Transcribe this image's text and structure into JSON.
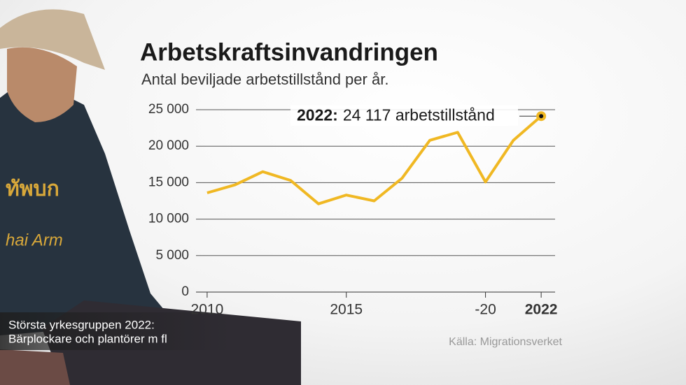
{
  "chart_data": {
    "type": "line",
    "title": "Arbetskraftsinvandringen",
    "subtitle": "Antal beviljade arbetstillstånd per år.",
    "x": [
      2010,
      2011,
      2012,
      2013,
      2014,
      2015,
      2016,
      2017,
      2018,
      2019,
      2020,
      2021,
      2022
    ],
    "values": [
      13600,
      14700,
      16500,
      15300,
      12100,
      13300,
      12500,
      15600,
      20800,
      21900,
      15100,
      20800,
      24117
    ],
    "color": "#f0b823",
    "xlim": [
      2009.6,
      2022.5
    ],
    "xticks": [
      2010,
      2015,
      {
        "value": 2020,
        "label": "-20"
      },
      2022
    ],
    "ylim": [
      0,
      25000
    ],
    "yticks": [
      0,
      {
        "value": 5000,
        "label": "5 000"
      },
      {
        "value": 10000,
        "label": "10 000"
      },
      {
        "value": 15000,
        "label": "15 000"
      },
      {
        "value": 20000,
        "label": "20 000"
      },
      {
        "value": 25000,
        "label": "25 000"
      }
    ],
    "grid": true,
    "annotation": {
      "label": "2022:",
      "text": "24 117 arbetstillstånd"
    },
    "caption": [
      "Största yrkesgruppen 2022:",
      "Bärplockare och plantörer m fl"
    ],
    "source": "Källa: Migrationsverket"
  }
}
